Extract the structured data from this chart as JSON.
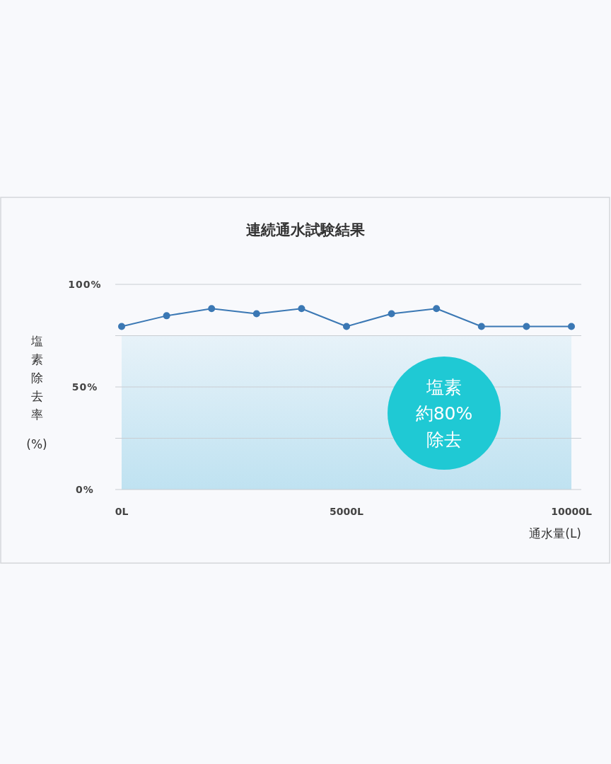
{
  "chart_data": {
    "type": "line",
    "title": "連続通水試験結果",
    "xlabel": "通水量(L)",
    "ylabel": "塩素除去率(%)",
    "x": [
      0,
      1000,
      2000,
      3000,
      4000,
      5000,
      6000,
      7000,
      8000,
      9000,
      10000
    ],
    "series": [
      {
        "color": "#3b78b4",
        "values": [
          79.5,
          84.7,
          88.2,
          85.7,
          88.2,
          79.5,
          85.7,
          88.2,
          79.5,
          79.5,
          79.5
        ]
      }
    ],
    "xlim": [
      0,
      10000
    ],
    "ylim": [
      0,
      100
    ],
    "xticks": [
      {
        "value": 0,
        "label": "0L"
      },
      {
        "value": 5000,
        "label": "5000L"
      },
      {
        "value": 10000,
        "label": "10000L"
      }
    ],
    "yticks": [
      {
        "value": 0,
        "label": "0%"
      },
      {
        "value": 25,
        "label": null
      },
      {
        "value": 50,
        "label": "50%"
      },
      {
        "value": 75,
        "label": null
      },
      {
        "value": 100,
        "label": "100%"
      }
    ],
    "grid": "y",
    "marker": "circle",
    "line_style": "solid",
    "bands": [
      {
        "axis": "y",
        "from": 0,
        "to": 75,
        "color": "#bfe2f1"
      }
    ],
    "annotations": [
      "塩素",
      "約80%",
      "除去"
    ]
  }
}
